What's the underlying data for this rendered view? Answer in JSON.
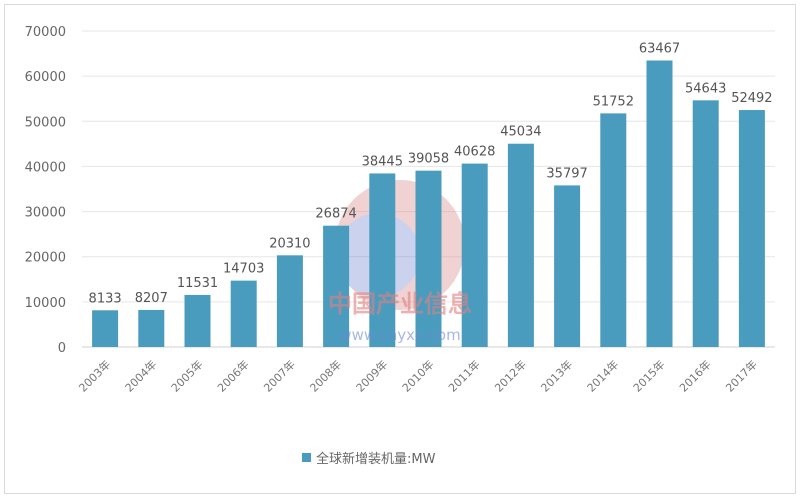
{
  "chart_data": {
    "type": "bar",
    "categories": [
      "2003年",
      "2004年",
      "2005年",
      "2006年",
      "2007年",
      "2008年",
      "2009年",
      "2010年",
      "2011年",
      "2012年",
      "2013年",
      "2014年",
      "2015年",
      "2016年",
      "2017年"
    ],
    "series": [
      {
        "name": "全球新增装机量:MW",
        "values": [
          8133,
          8207,
          11531,
          14703,
          20310,
          26874,
          38445,
          39058,
          40628,
          45034,
          35797,
          51752,
          63467,
          54643,
          52492
        ]
      }
    ],
    "ylim": [
      0,
      70000
    ],
    "yticks": [
      0,
      10000,
      20000,
      30000,
      40000,
      50000,
      60000,
      70000
    ],
    "grid": true,
    "legend": "bottom",
    "bar_color": "#4a9cbf",
    "data_labels": true
  },
  "watermark": {
    "text": "中国产业信息",
    "url": "www.chyxx.com"
  }
}
